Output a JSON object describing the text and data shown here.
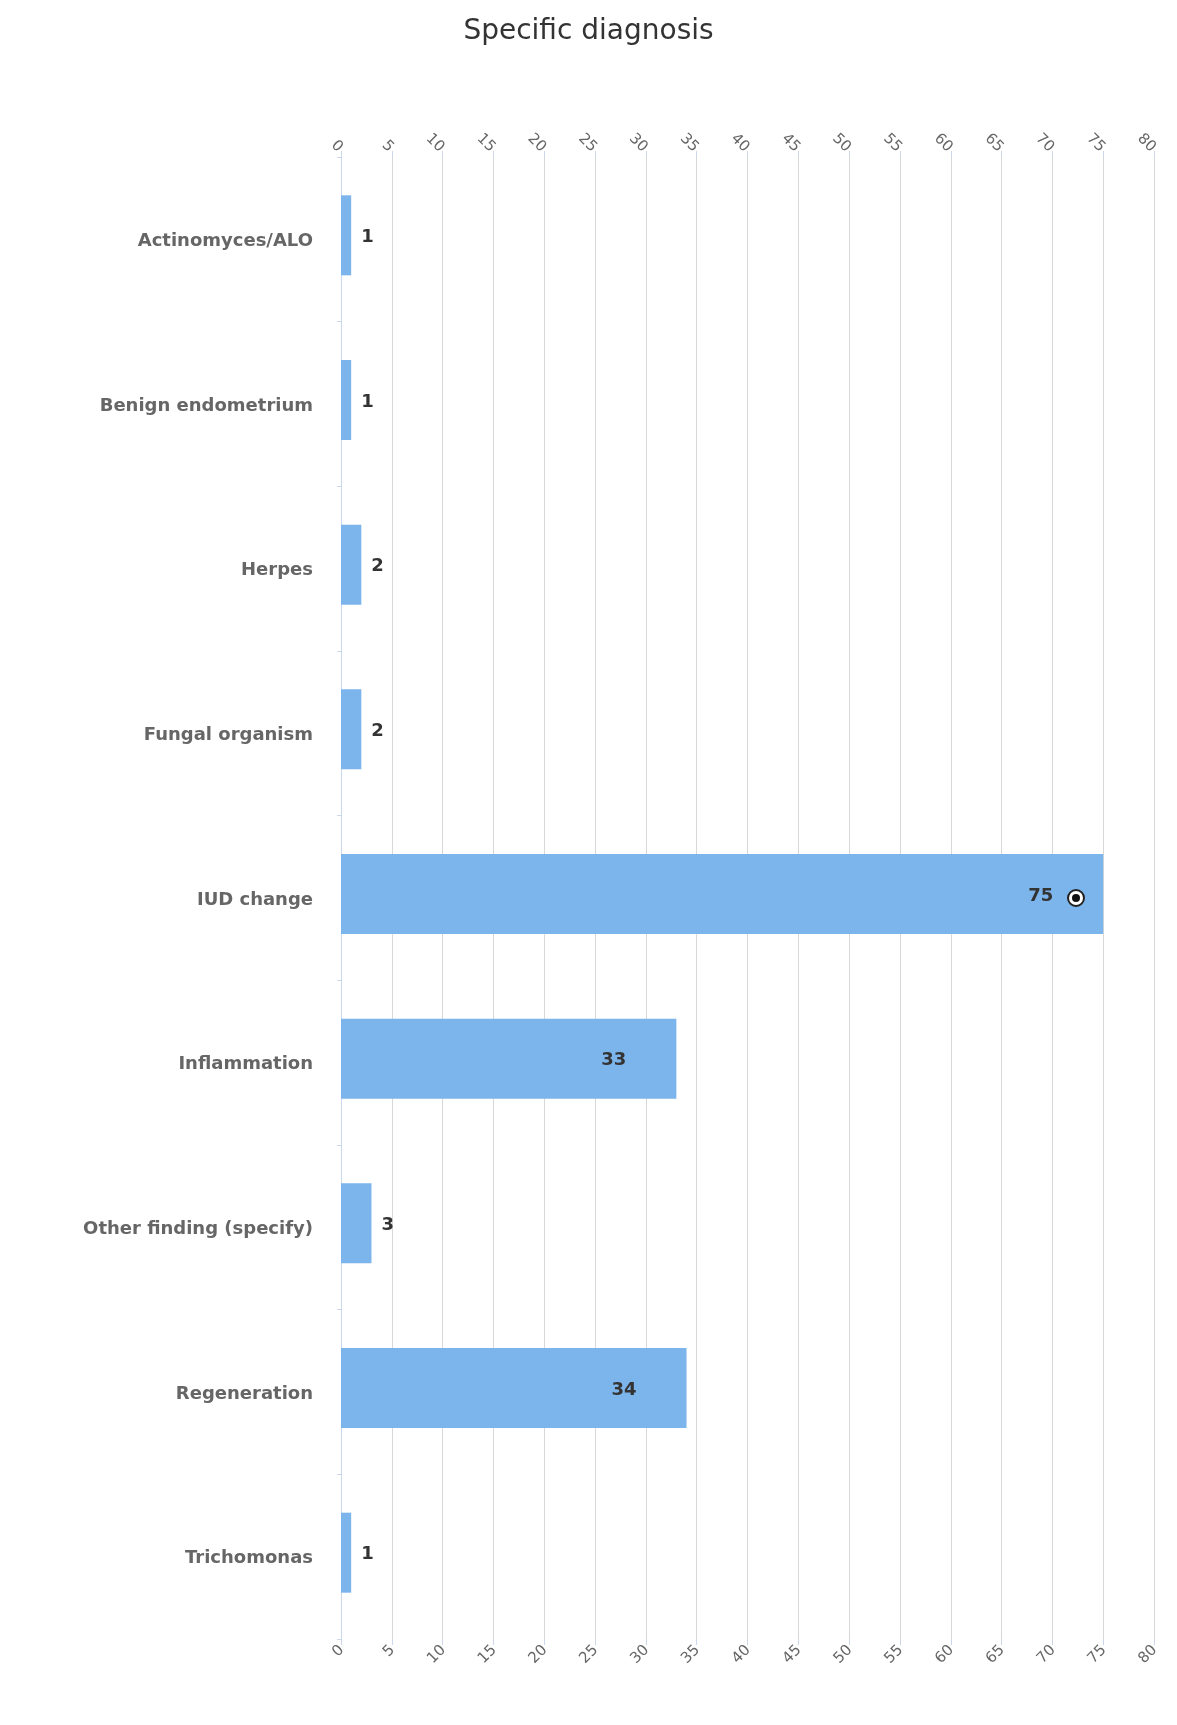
{
  "chart_data": {
    "type": "bar",
    "title": "Specific diagnosis",
    "orientation": "horizontal",
    "categories": [
      "Actinomyces/ALO",
      "Benign endometrium",
      "Herpes",
      "Fungal organism",
      "IUD change",
      "Inflammation",
      "Other finding (specify)",
      "Regeneration",
      "Trichomonas"
    ],
    "values": [
      1,
      1,
      2,
      2,
      75,
      33,
      3,
      34,
      1
    ],
    "color": "#7cb5ec",
    "xlim": [
      0,
      80
    ],
    "xticks": [
      0,
      5,
      10,
      15,
      20,
      25,
      30,
      35,
      40,
      45,
      50,
      55,
      60,
      65,
      70,
      75,
      80
    ],
    "x2lim": [
      0,
      80
    ],
    "x2ticks": [
      0,
      5,
      10,
      15,
      20,
      25,
      30,
      35,
      40,
      45,
      50,
      55,
      60,
      65,
      70,
      75,
      80
    ],
    "grid": "x",
    "data_labels": true
  }
}
